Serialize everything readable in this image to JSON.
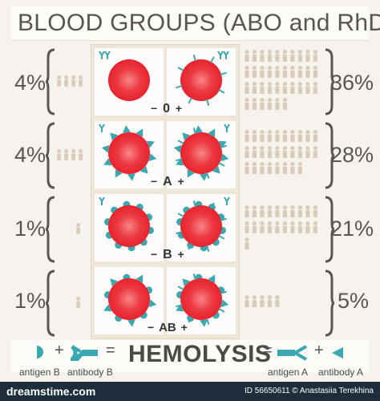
{
  "title": "BLOOD GROUPS (ABO and RhD)",
  "rows": [
    {
      "type": "0",
      "left_percent": "4%",
      "right_percent": "36%"
    },
    {
      "type": "A",
      "left_percent": "4%",
      "right_percent": "28%"
    },
    {
      "type": "B",
      "left_percent": "1%",
      "right_percent": "21%"
    },
    {
      "type": "AB",
      "left_percent": "1%",
      "right_percent": "5%"
    }
  ],
  "rh_signs": {
    "negative": "−",
    "positive": "+"
  },
  "legend": {
    "hemolysis": "HEMOLYSIS",
    "plus": "+",
    "equals": "=",
    "antigen_b": "antigen B",
    "antibody_b": "antibody B",
    "antigen_a": "antigen A",
    "antibody_a": "antibody A"
  },
  "footer": {
    "logo": "dreamstime.com",
    "id_text": "ID 56650611 © Anastasiia Terekhina"
  },
  "colors": {
    "cell_red": "#e8232d",
    "antigen_teal": "#3aa8b0",
    "text_gray": "#5a5550",
    "people": "#d9cbb8",
    "footer_bg": "#1d2d3c"
  }
}
